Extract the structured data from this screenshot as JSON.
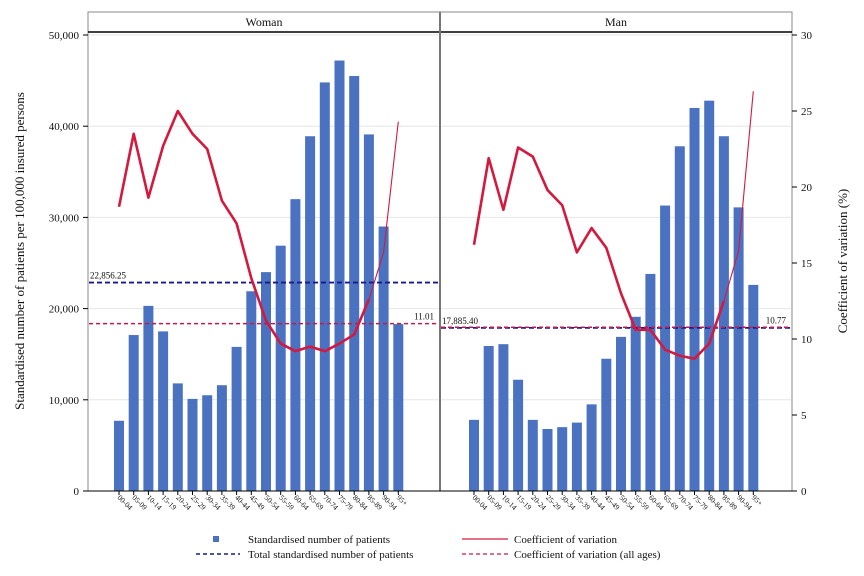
{
  "chart_data": {
    "type": "bar",
    "panels": [
      "Woman",
      "Man"
    ],
    "categories": [
      "00-04",
      "05-09",
      "10-14",
      "15-19",
      "20-24",
      "25-29",
      "30-34",
      "35-39",
      "40-44",
      "45-49",
      "50-54",
      "55-59",
      "60-64",
      "65-69",
      "70-74",
      "75-79",
      "80-84",
      "85-89",
      "90-94",
      "95+"
    ],
    "ylabel": "Standardised number of patients per 100,000 insured persons",
    "y2label": "Coefficient of variation (%)",
    "ylim": [
      0,
      50000
    ],
    "y2lim": [
      0,
      30
    ],
    "yticks": [
      "0",
      "10,000",
      "20,000",
      "30,000",
      "40,000",
      "50,000"
    ],
    "y2ticks": [
      "0",
      "5",
      "10",
      "15",
      "20",
      "25",
      "30"
    ],
    "grid": true,
    "legend_position": "bottom",
    "legend": {
      "bars": "Standardised number of patients",
      "total": "Total standardised number of patients",
      "cv": "Coefficient of variation",
      "cv_all": "Coefficient of variation (all ages)"
    },
    "series": [
      {
        "panel": "Woman",
        "patients": [
          7700,
          17100,
          20300,
          17500,
          11800,
          10100,
          10500,
          11600,
          15800,
          21900,
          24000,
          26900,
          32000,
          38900,
          44800,
          47200,
          45500,
          39100,
          29000,
          18300
        ],
        "cv": [
          18.7,
          23.5,
          19.3,
          22.7,
          25.0,
          23.5,
          22.5,
          19.1,
          17.6,
          14.0,
          11.2,
          9.7,
          9.2,
          9.5,
          9.2,
          9.7,
          10.3,
          12.6,
          15.7,
          24.3
        ],
        "total": 22856.25,
        "total_label": "22,856.25",
        "cv_all": 11.01,
        "cv_all_label": "11.01",
        "colors": {
          "bar": "#4a72c0",
          "cv": "#d4193f",
          "total": "#1a1a8c",
          "cv_all": "#c8174a"
        }
      },
      {
        "panel": "Man",
        "patients": [
          7800,
          15900,
          16100,
          12200,
          7800,
          6800,
          7000,
          7500,
          9500,
          14500,
          16900,
          19100,
          23800,
          31300,
          37800,
          42000,
          42800,
          38900,
          31100,
          22600
        ],
        "cv": [
          16.2,
          21.9,
          18.5,
          22.6,
          22.0,
          19.8,
          18.8,
          15.7,
          17.3,
          16.0,
          13.0,
          10.6,
          10.6,
          9.3,
          8.9,
          8.7,
          9.7,
          12.5,
          15.8,
          26.3
        ],
        "total": 17885.4,
        "total_label": "17,885.40",
        "cv_all": 10.77,
        "cv_all_label": "10.77",
        "colors": {
          "bar": "#4a72c0",
          "cv": "#d4193f",
          "total": "#1a1a8c",
          "cv_all": "#c8174a"
        }
      }
    ]
  }
}
